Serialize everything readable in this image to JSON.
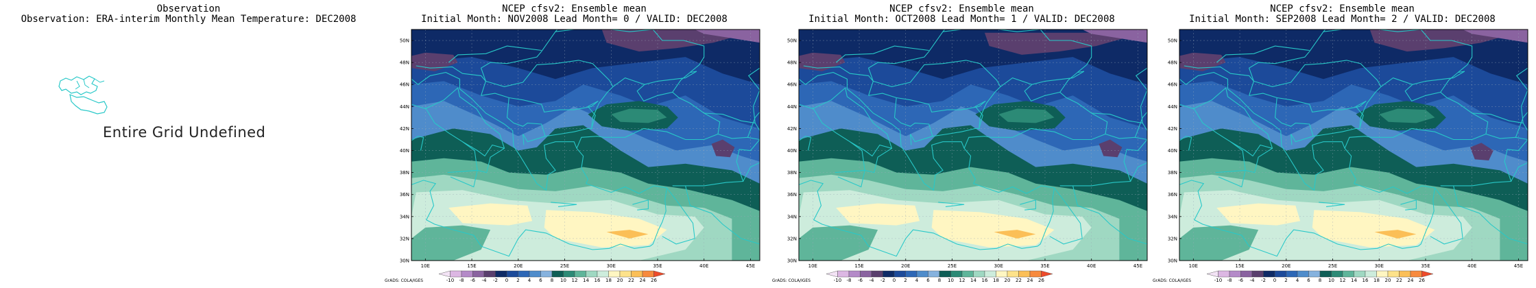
{
  "observation": {
    "title_line1": "Observation",
    "title_line2": "Observation: ERA-interim Monthly Mean Temperature: DEC2008",
    "undefined_message": "Entire Grid Undefined"
  },
  "panels": [
    {
      "title_line1": "NCEP cfsv2: Ensemble mean",
      "title_line2": "Initial Month: NOV2008  Lead Month= 0 / VALID: DEC2008"
    },
    {
      "title_line1": "NCEP cfsv2: Ensemble mean",
      "title_line2": "Initial Month: OCT2008  Lead Month= 1 / VALID: DEC2008"
    },
    {
      "title_line1": "NCEP cfsv2: Ensemble mean",
      "title_line2": "Initial Month: SEP2008  Lead Month= 2 / VALID: DEC2008"
    }
  ],
  "map_axes": {
    "lat_labels": [
      "30N",
      "32N",
      "34N",
      "36N",
      "38N",
      "40N",
      "42N",
      "44N",
      "46N",
      "48N",
      "50N"
    ],
    "lon_labels": [
      "10E",
      "15E",
      "20E",
      "25E",
      "30E",
      "35E",
      "40E",
      "45E"
    ],
    "lat_range": [
      30,
      51
    ],
    "lon_range": [
      8.5,
      46
    ]
  },
  "colorbar": {
    "credit": "GrADS: COLA/IGES",
    "labels": [
      "-10",
      "-8",
      "-6",
      "-4",
      "-2",
      "0",
      "2",
      "4",
      "6",
      "8",
      "10",
      "12",
      "14",
      "16",
      "18",
      "20",
      "22",
      "24",
      "26"
    ],
    "colors": [
      "#f3e3f5",
      "#dcb7e3",
      "#b48ac8",
      "#8a63a0",
      "#5a3f6e",
      "#0e2a66",
      "#1c4a9a",
      "#2d67b6",
      "#4f8ccb",
      "#86b2de",
      "#0e5e56",
      "#2c8a76",
      "#5fb59a",
      "#9fd8c2",
      "#cdecdc",
      "#fff6c2",
      "#fde28a",
      "#fbbf57",
      "#f78a3e",
      "#ee4b2b"
    ]
  },
  "colors": {
    "coast_line": "#28c8c8",
    "grid_line": "#9aa8b8"
  }
}
